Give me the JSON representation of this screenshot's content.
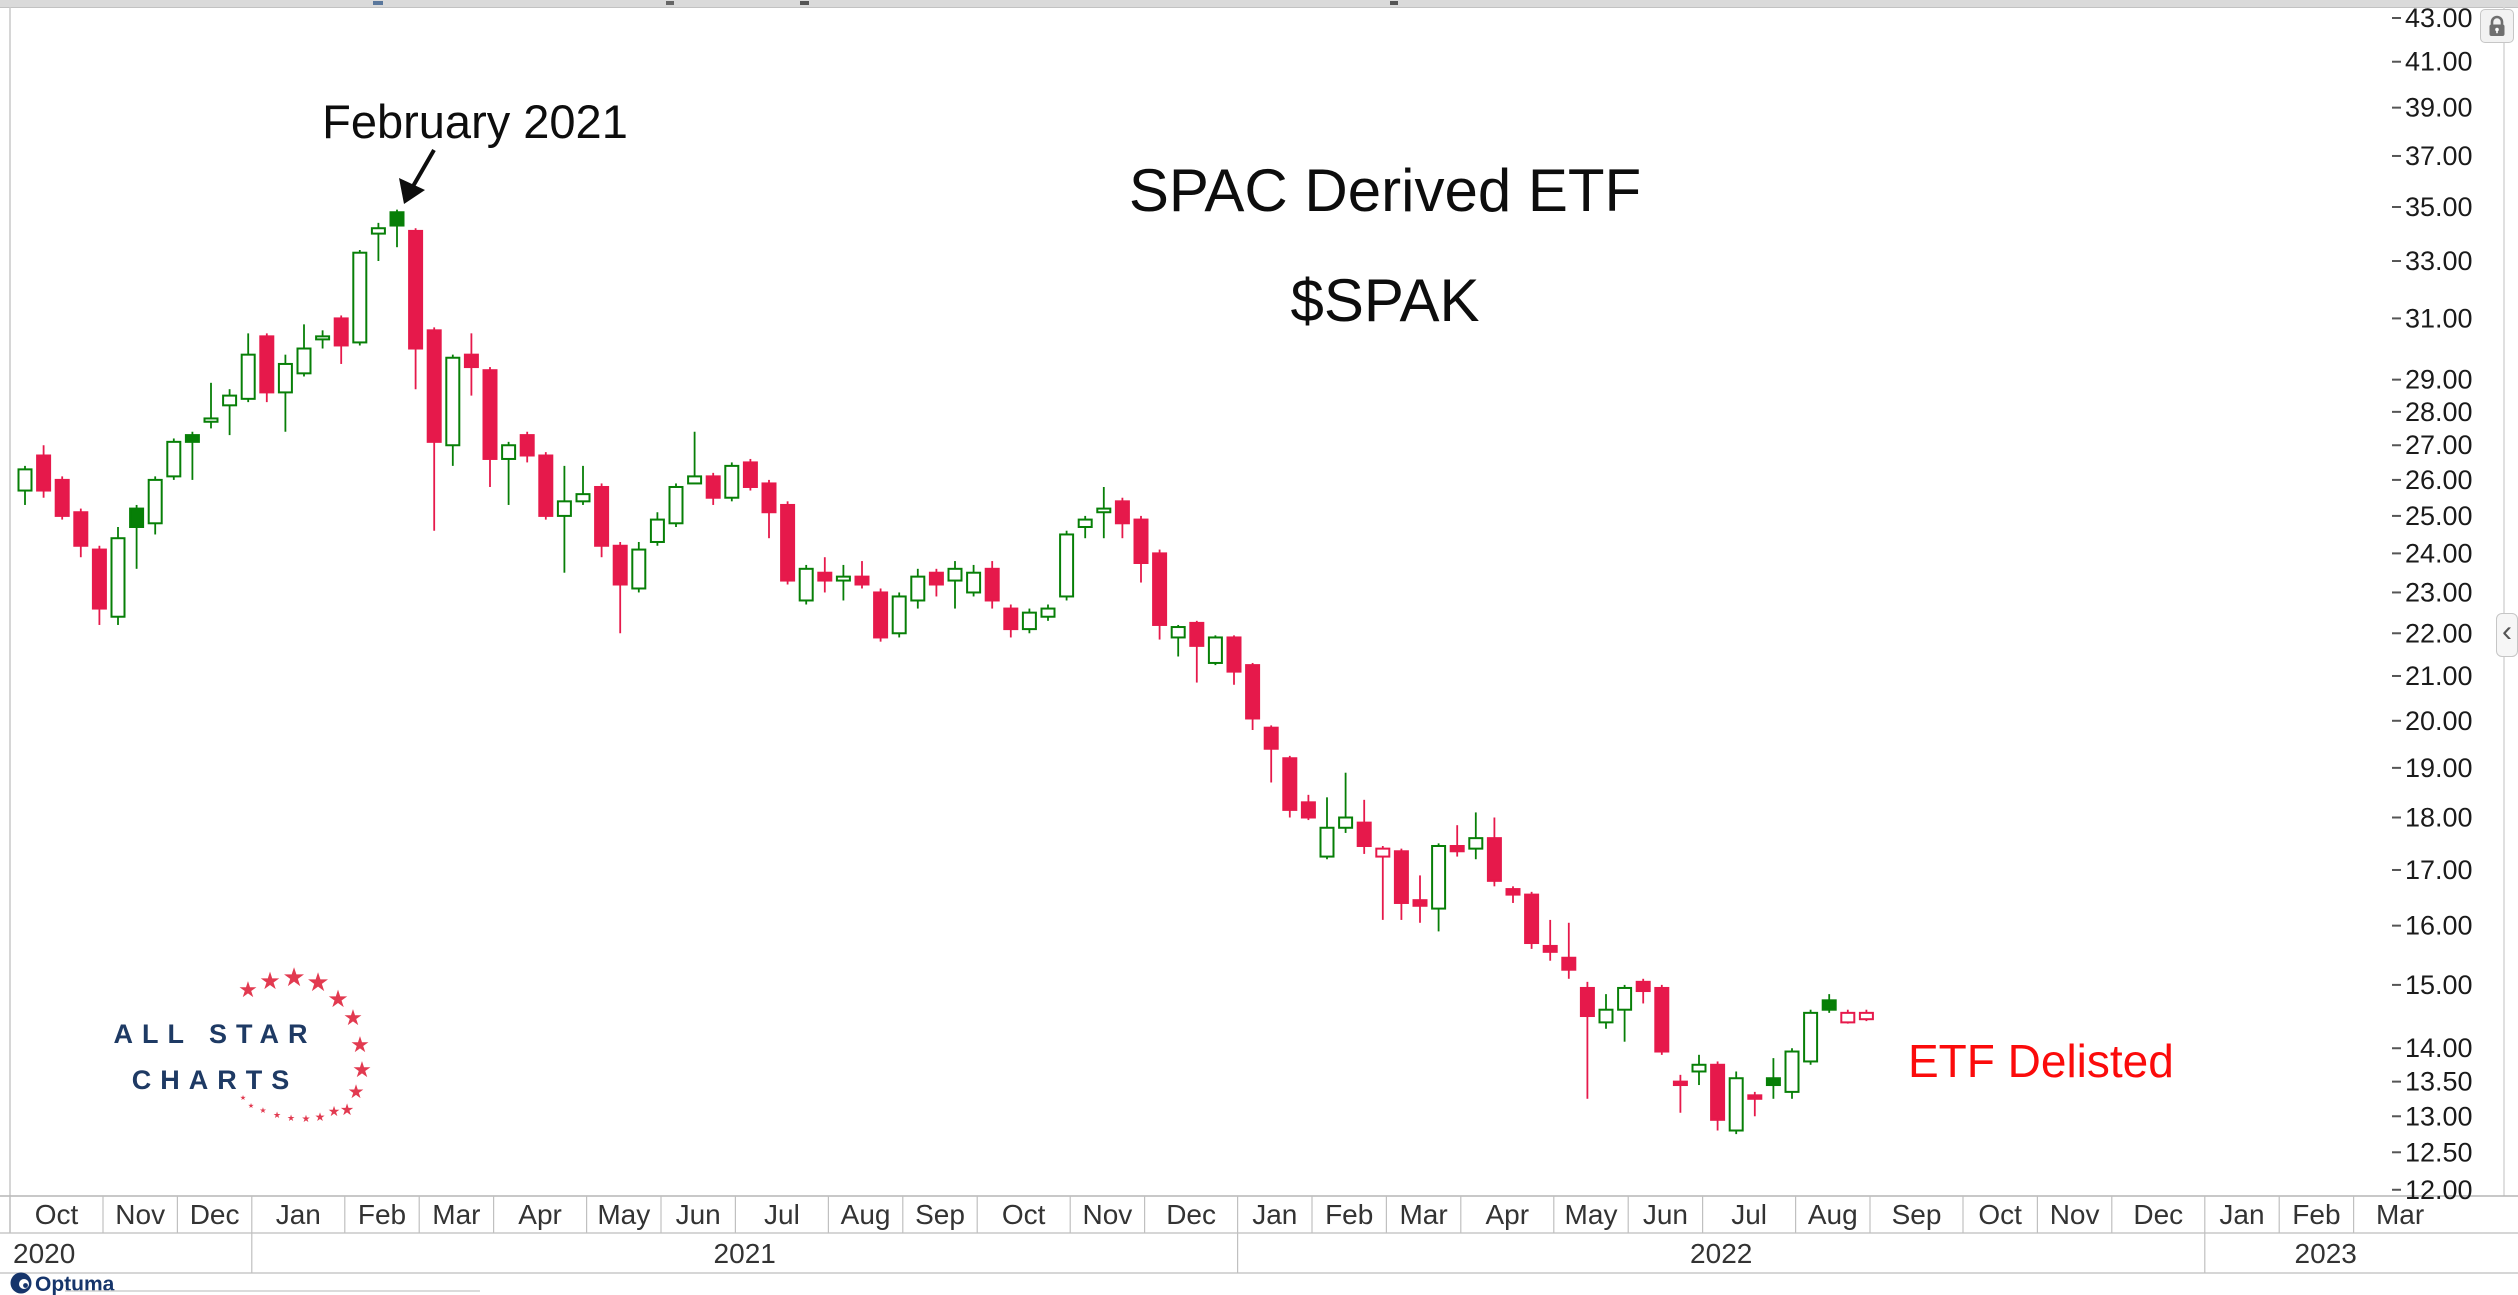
{
  "chart_title": {
    "line1": "SPAC Derived ETF",
    "line2": "$SPAK"
  },
  "annotations": {
    "peak_label": "February 2021",
    "peak_arrow_target_date": "2021-02-19",
    "delisted_label": "ETF Delisted"
  },
  "watermark": {
    "line1": "ALL STAR",
    "line2": "CHARTS"
  },
  "provider": {
    "name": "Optuma"
  },
  "controls": {
    "collapse_chevron": "‹"
  },
  "colors": {
    "up": "#077f07",
    "down": "#e6194b",
    "annotation_red": "#fb0b0b",
    "logo_navy": "#1e3a64",
    "logo_red": "#e23a50",
    "axis_text": "#1b1b1b",
    "band_text": "#333333",
    "frame": "#c9c9c9"
  },
  "chart_data": {
    "type": "candlestick",
    "instrument": "SPAC Derived ETF",
    "ticker": "$SPAK",
    "timeframe": "weekly",
    "y_axis": {
      "scale": "log",
      "ticks": [
        {
          "v": 43,
          "label": "43.00"
        },
        {
          "v": 41,
          "label": "41.00"
        },
        {
          "v": 39,
          "label": "39.00"
        },
        {
          "v": 37,
          "label": "37.00"
        },
        {
          "v": 35,
          "label": "35.00"
        },
        {
          "v": 33,
          "label": "33.00"
        },
        {
          "v": 31,
          "label": "31.00"
        },
        {
          "v": 29,
          "label": "29.00"
        },
        {
          "v": 28,
          "label": "28.00"
        },
        {
          "v": 27,
          "label": "27.00"
        },
        {
          "v": 26,
          "label": "26.00"
        },
        {
          "v": 25,
          "label": "25.00"
        },
        {
          "v": 24,
          "label": "24.00"
        },
        {
          "v": 23,
          "label": "23.00"
        },
        {
          "v": 22,
          "label": "22.00"
        },
        {
          "v": 21,
          "label": "21.00"
        },
        {
          "v": 20,
          "label": "20.00"
        },
        {
          "v": 19,
          "label": "19.00"
        },
        {
          "v": 18,
          "label": "18.00"
        },
        {
          "v": 17,
          "label": "17.00"
        },
        {
          "v": 16,
          "label": "16.00"
        },
        {
          "v": 15,
          "label": "15.00"
        },
        {
          "v": 14,
          "label": "14.00"
        },
        {
          "v": 13.5,
          "label": "13.50"
        },
        {
          "v": 13,
          "label": "13.00"
        },
        {
          "v": 12.5,
          "label": "12.50"
        },
        {
          "v": 12,
          "label": "12.00"
        }
      ]
    },
    "x_axis": {
      "months": [
        {
          "label": "Oct",
          "year": "2020",
          "weeks": 5
        },
        {
          "label": "Nov",
          "year": "2020",
          "weeks": 4
        },
        {
          "label": "Dec",
          "year": "2020",
          "weeks": 4
        },
        {
          "label": "Jan",
          "year": "2021",
          "weeks": 5
        },
        {
          "label": "Feb",
          "year": "2021",
          "weeks": 4
        },
        {
          "label": "Mar",
          "year": "2021",
          "weeks": 4
        },
        {
          "label": "Apr",
          "year": "2021",
          "weeks": 5
        },
        {
          "label": "May",
          "year": "2021",
          "weeks": 4
        },
        {
          "label": "Jun",
          "year": "2021",
          "weeks": 4
        },
        {
          "label": "Jul",
          "year": "2021",
          "weeks": 5
        },
        {
          "label": "Aug",
          "year": "2021",
          "weeks": 4
        },
        {
          "label": "Sep",
          "year": "2021",
          "weeks": 4
        },
        {
          "label": "Oct",
          "year": "2021",
          "weeks": 5
        },
        {
          "label": "Nov",
          "year": "2021",
          "weeks": 4
        },
        {
          "label": "Dec",
          "year": "2021",
          "weeks": 5
        },
        {
          "label": "Jan",
          "year": "2022",
          "weeks": 4
        },
        {
          "label": "Feb",
          "year": "2022",
          "weeks": 4
        },
        {
          "label": "Mar",
          "year": "2022",
          "weeks": 4
        },
        {
          "label": "Apr",
          "year": "2022",
          "weeks": 5
        },
        {
          "label": "May",
          "year": "2022",
          "weeks": 4
        },
        {
          "label": "Jun",
          "year": "2022",
          "weeks": 4
        },
        {
          "label": "Jul",
          "year": "2022",
          "weeks": 5
        },
        {
          "label": "Aug",
          "year": "2022",
          "weeks": 4
        },
        {
          "label": "Sep",
          "year": "2022",
          "weeks": 5
        },
        {
          "label": "Oct",
          "year": "2022",
          "weeks": 4
        },
        {
          "label": "Nov",
          "year": "2022",
          "weeks": 4
        },
        {
          "label": "Dec",
          "year": "2022",
          "weeks": 5
        },
        {
          "label": "Jan",
          "year": "2023",
          "weeks": 4
        },
        {
          "label": "Feb",
          "year": "2023",
          "weeks": 4
        },
        {
          "label": "Mar",
          "year": "2023",
          "weeks": 5
        }
      ],
      "year_labels": [
        "2020",
        "2021",
        "2022",
        "2023"
      ]
    },
    "candles": [
      [
        "2020-10-02",
        25.7,
        26.4,
        25.3,
        26.3,
        "u"
      ],
      [
        "2020-10-09",
        26.7,
        27.0,
        25.5,
        25.7,
        "d"
      ],
      [
        "2020-10-16",
        26.0,
        26.1,
        24.9,
        25.0,
        "d"
      ],
      [
        "2020-10-23",
        25.1,
        25.2,
        23.9,
        24.2,
        "d"
      ],
      [
        "2020-10-30",
        24.1,
        24.2,
        22.2,
        22.6,
        "d"
      ],
      [
        "2020-11-06",
        22.4,
        24.7,
        22.2,
        24.4,
        "u"
      ],
      [
        "2020-11-13",
        24.7,
        25.3,
        23.6,
        25.2,
        "U"
      ],
      [
        "2020-11-20",
        24.8,
        26.1,
        24.5,
        26.0,
        "u"
      ],
      [
        "2020-11-27",
        26.1,
        27.2,
        26.0,
        27.1,
        "u"
      ],
      [
        "2020-12-04",
        27.1,
        27.4,
        26.0,
        27.3,
        "U"
      ],
      [
        "2020-12-11",
        27.7,
        28.9,
        27.5,
        27.8,
        "u"
      ],
      [
        "2020-12-18",
        28.2,
        28.7,
        27.3,
        28.5,
        "u"
      ],
      [
        "2020-12-25",
        28.4,
        30.5,
        28.3,
        29.8,
        "u"
      ],
      [
        "2021-01-01",
        30.4,
        30.5,
        28.3,
        28.6,
        "d"
      ],
      [
        "2021-01-08",
        28.6,
        29.8,
        27.4,
        29.5,
        "u"
      ],
      [
        "2021-01-15",
        29.2,
        30.8,
        29.1,
        30.0,
        "u"
      ],
      [
        "2021-01-22",
        30.3,
        30.6,
        30.0,
        30.4,
        "u"
      ],
      [
        "2021-01-29",
        31.0,
        31.1,
        29.5,
        30.1,
        "d"
      ],
      [
        "2021-02-05",
        30.2,
        33.4,
        30.1,
        33.3,
        "u"
      ],
      [
        "2021-02-12",
        34.0,
        34.4,
        33.0,
        34.2,
        "u"
      ],
      [
        "2021-02-19",
        34.3,
        34.9,
        33.5,
        34.8,
        "U"
      ],
      [
        "2021-02-26",
        34.1,
        34.2,
        28.7,
        30.0,
        "d"
      ],
      [
        "2021-03-05",
        30.6,
        30.7,
        24.6,
        27.1,
        "d"
      ],
      [
        "2021-03-12",
        27.0,
        29.8,
        26.4,
        29.7,
        "u"
      ],
      [
        "2021-03-19",
        29.8,
        30.5,
        28.5,
        29.4,
        "d"
      ],
      [
        "2021-03-26",
        29.3,
        29.4,
        25.8,
        26.6,
        "d"
      ],
      [
        "2021-04-02",
        26.6,
        27.1,
        25.3,
        27.0,
        "u"
      ],
      [
        "2021-04-09",
        27.3,
        27.4,
        26.5,
        26.7,
        "d"
      ],
      [
        "2021-04-16",
        26.7,
        26.8,
        24.9,
        25.0,
        "d"
      ],
      [
        "2021-04-23",
        25.0,
        26.4,
        23.5,
        25.4,
        "u"
      ],
      [
        "2021-04-30",
        25.4,
        26.4,
        25.3,
        25.6,
        "u"
      ],
      [
        "2021-05-07",
        25.8,
        25.9,
        23.9,
        24.2,
        "d"
      ],
      [
        "2021-05-14",
        24.2,
        24.3,
        22.0,
        23.2,
        "d"
      ],
      [
        "2021-05-21",
        23.1,
        24.3,
        23.0,
        24.1,
        "u"
      ],
      [
        "2021-05-28",
        24.3,
        25.1,
        24.2,
        24.9,
        "u"
      ],
      [
        "2021-06-04",
        24.8,
        25.9,
        24.7,
        25.8,
        "u"
      ],
      [
        "2021-06-11",
        25.9,
        27.4,
        25.9,
        26.1,
        "u"
      ],
      [
        "2021-06-18",
        26.1,
        26.2,
        25.3,
        25.5,
        "d"
      ],
      [
        "2021-06-25",
        25.5,
        26.5,
        25.4,
        26.4,
        "u"
      ],
      [
        "2021-07-02",
        26.5,
        26.6,
        25.7,
        25.8,
        "d"
      ],
      [
        "2021-07-09",
        25.9,
        26.0,
        24.4,
        25.1,
        "d"
      ],
      [
        "2021-07-16",
        25.3,
        25.4,
        23.2,
        23.3,
        "d"
      ],
      [
        "2021-07-23",
        22.8,
        23.7,
        22.7,
        23.6,
        "u"
      ],
      [
        "2021-07-30",
        23.5,
        23.9,
        23.0,
        23.3,
        "d"
      ],
      [
        "2021-08-06",
        23.3,
        23.7,
        22.8,
        23.4,
        "u"
      ],
      [
        "2021-08-13",
        23.4,
        23.8,
        23.1,
        23.2,
        "d"
      ],
      [
        "2021-08-20",
        23.0,
        23.1,
        21.8,
        21.9,
        "d"
      ],
      [
        "2021-08-27",
        22.0,
        23.0,
        21.9,
        22.9,
        "u"
      ],
      [
        "2021-09-03",
        22.8,
        23.6,
        22.6,
        23.4,
        "u"
      ],
      [
        "2021-09-10",
        23.5,
        23.6,
        22.9,
        23.2,
        "d"
      ],
      [
        "2021-09-17",
        23.3,
        23.8,
        22.6,
        23.6,
        "u"
      ],
      [
        "2021-09-24",
        23.0,
        23.7,
        22.9,
        23.5,
        "u"
      ],
      [
        "2021-10-01",
        23.6,
        23.8,
        22.6,
        22.8,
        "d"
      ],
      [
        "2021-10-08",
        22.6,
        22.7,
        21.9,
        22.1,
        "d"
      ],
      [
        "2021-10-15",
        22.1,
        22.6,
        22.0,
        22.5,
        "u"
      ],
      [
        "2021-10-22",
        22.4,
        22.7,
        22.3,
        22.6,
        "u"
      ],
      [
        "2021-10-29",
        22.9,
        24.6,
        22.8,
        24.5,
        "u"
      ],
      [
        "2021-11-05",
        24.7,
        25.0,
        24.4,
        24.9,
        "u"
      ],
      [
        "2021-11-12",
        25.1,
        25.8,
        24.4,
        25.2,
        "u"
      ],
      [
        "2021-11-19",
        25.4,
        25.5,
        24.4,
        24.8,
        "d"
      ],
      [
        "2021-11-26",
        24.9,
        25.0,
        23.25,
        23.75,
        "d"
      ],
      [
        "2021-12-03",
        24.0,
        24.1,
        21.85,
        22.2,
        "d"
      ],
      [
        "2021-12-10",
        21.9,
        22.2,
        21.45,
        22.15,
        "u"
      ],
      [
        "2021-12-17",
        22.25,
        22.3,
        20.85,
        21.7,
        "d"
      ],
      [
        "2021-12-24",
        21.3,
        21.95,
        21.25,
        21.9,
        "u"
      ],
      [
        "2021-12-31",
        21.9,
        21.95,
        20.8,
        21.1,
        "d"
      ],
      [
        "2022-01-07",
        21.25,
        21.3,
        19.8,
        20.05,
        "d"
      ],
      [
        "2022-01-14",
        19.85,
        19.9,
        18.7,
        19.4,
        "d"
      ],
      [
        "2022-01-21",
        19.2,
        19.25,
        18.0,
        18.15,
        "d"
      ],
      [
        "2022-01-28",
        18.3,
        18.45,
        17.95,
        18.0,
        "d"
      ],
      [
        "2022-02-04",
        17.25,
        18.4,
        17.2,
        17.8,
        "u"
      ],
      [
        "2022-02-11",
        17.8,
        18.9,
        17.7,
        18.0,
        "u"
      ],
      [
        "2022-02-18",
        17.9,
        18.35,
        17.3,
        17.45,
        "d"
      ],
      [
        "2022-02-25",
        17.25,
        17.45,
        16.1,
        17.4,
        "D"
      ],
      [
        "2022-03-04",
        17.35,
        17.4,
        16.1,
        16.4,
        "d"
      ],
      [
        "2022-03-11",
        16.45,
        16.9,
        16.05,
        16.35,
        "d"
      ],
      [
        "2022-03-18",
        16.3,
        17.5,
        15.9,
        17.45,
        "u"
      ],
      [
        "2022-03-25",
        17.45,
        17.85,
        17.25,
        17.35,
        "d"
      ],
      [
        "2022-04-01",
        17.4,
        18.1,
        17.2,
        17.6,
        "u"
      ],
      [
        "2022-04-08",
        17.6,
        18.0,
        16.7,
        16.8,
        "d"
      ],
      [
        "2022-04-15",
        16.65,
        16.7,
        16.4,
        16.55,
        "d"
      ],
      [
        "2022-04-22",
        16.55,
        16.6,
        15.6,
        15.7,
        "d"
      ],
      [
        "2022-04-29",
        15.65,
        16.1,
        15.4,
        15.55,
        "d"
      ],
      [
        "2022-05-06",
        15.45,
        16.05,
        15.1,
        15.25,
        "d"
      ],
      [
        "2022-05-13",
        14.95,
        15.05,
        13.25,
        14.5,
        "d"
      ],
      [
        "2022-05-20",
        14.4,
        14.85,
        14.3,
        14.6,
        "u"
      ],
      [
        "2022-05-27",
        14.6,
        15.0,
        14.1,
        14.95,
        "u"
      ],
      [
        "2022-06-03",
        15.05,
        15.1,
        14.7,
        14.9,
        "d"
      ],
      [
        "2022-06-10",
        14.95,
        15.0,
        13.9,
        13.95,
        "d"
      ],
      [
        "2022-06-17",
        13.5,
        13.6,
        13.05,
        13.45,
        "d"
      ],
      [
        "2022-06-24",
        13.65,
        13.9,
        13.45,
        13.75,
        "u"
      ],
      [
        "2022-07-01",
        13.75,
        13.8,
        12.8,
        12.95,
        "d"
      ],
      [
        "2022-07-08",
        12.8,
        13.65,
        12.75,
        13.55,
        "u"
      ],
      [
        "2022-07-15",
        13.3,
        13.35,
        13.0,
        13.25,
        "d"
      ],
      [
        "2022-07-22",
        13.45,
        13.85,
        13.25,
        13.55,
        "U"
      ],
      [
        "2022-07-29",
        13.35,
        14.0,
        13.25,
        13.95,
        "u"
      ],
      [
        "2022-08-05",
        13.8,
        14.6,
        13.75,
        14.55,
        "u"
      ],
      [
        "2022-08-12",
        14.6,
        14.85,
        14.55,
        14.75,
        "U"
      ],
      [
        "2022-08-19",
        14.4,
        14.6,
        14.38,
        14.55,
        "D"
      ],
      [
        "2022-08-26",
        14.45,
        14.6,
        14.42,
        14.55,
        "D"
      ]
    ]
  }
}
